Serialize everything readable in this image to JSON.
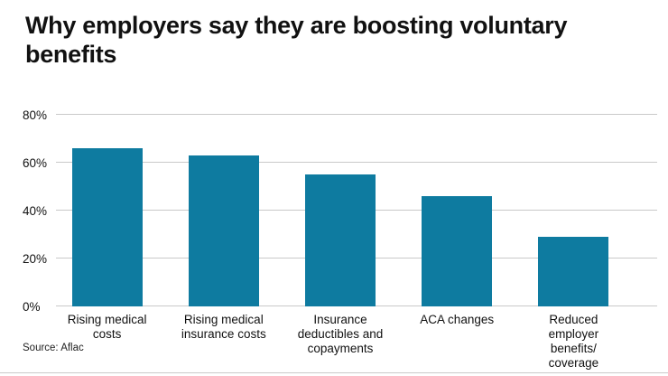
{
  "title": "Why employers say they are boosting voluntary\nbenefits",
  "source": "Source: Aflac",
  "colors": {
    "bar": "#0e7ba0",
    "grid": "#c9c9c9",
    "text": "#111111"
  },
  "chart_data": {
    "type": "bar",
    "title": "Why employers say they are boosting voluntary benefits",
    "categories": [
      "Rising medical\ncosts",
      "Rising medical\ninsurance costs",
      "Insurance\ndeductibles and\ncopayments",
      "ACA changes",
      "Reduced\nemployer\nbenefits/\ncoverage"
    ],
    "values": [
      66,
      63,
      55,
      46,
      29
    ],
    "xlabel": "",
    "ylabel": "",
    "ylim": [
      0,
      80
    ],
    "yticks": [
      0,
      20,
      40,
      60,
      80
    ],
    "ytick_suffix": "%",
    "grid": true,
    "legend_position": "none",
    "source": "Source: Aflac"
  }
}
